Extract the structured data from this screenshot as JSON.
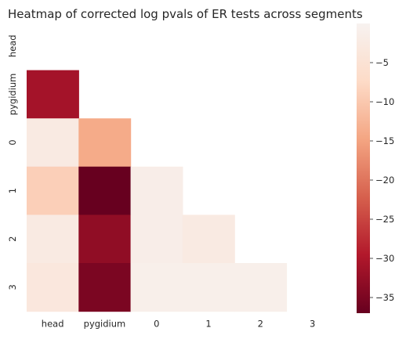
{
  "chart_data": {
    "type": "heatmap",
    "title": "Heatmap of corrected log pvals of ER tests across segments",
    "row_labels": [
      "head",
      "pygidium",
      "0",
      "1",
      "2",
      "3"
    ],
    "col_labels": [
      "head",
      "pygidium",
      "0",
      "1",
      "2",
      "3"
    ],
    "values": [
      [
        null,
        null,
        null,
        null,
        null,
        null
      ],
      [
        -31,
        null,
        null,
        null,
        null,
        null
      ],
      [
        -2.5,
        -14,
        null,
        null,
        null,
        null
      ],
      [
        -9,
        -37,
        -1.5,
        null,
        null,
        null
      ],
      [
        -2.5,
        -33,
        -1.5,
        -2.5,
        null,
        null
      ],
      [
        -3.5,
        -35,
        -1,
        -1,
        -1,
        null
      ]
    ],
    "masked": "upper-triangle-and-diagonal",
    "colormap": "RdBu",
    "vmin": -37,
    "vmax": 0,
    "colorbar_ticks": [
      -5,
      -10,
      -15,
      -20,
      -25,
      -30,
      -35
    ],
    "colorbar_tick_labels": [
      "−5",
      "−10",
      "−15",
      "−20",
      "−25",
      "−30",
      "−35"
    ],
    "grid": false
  }
}
